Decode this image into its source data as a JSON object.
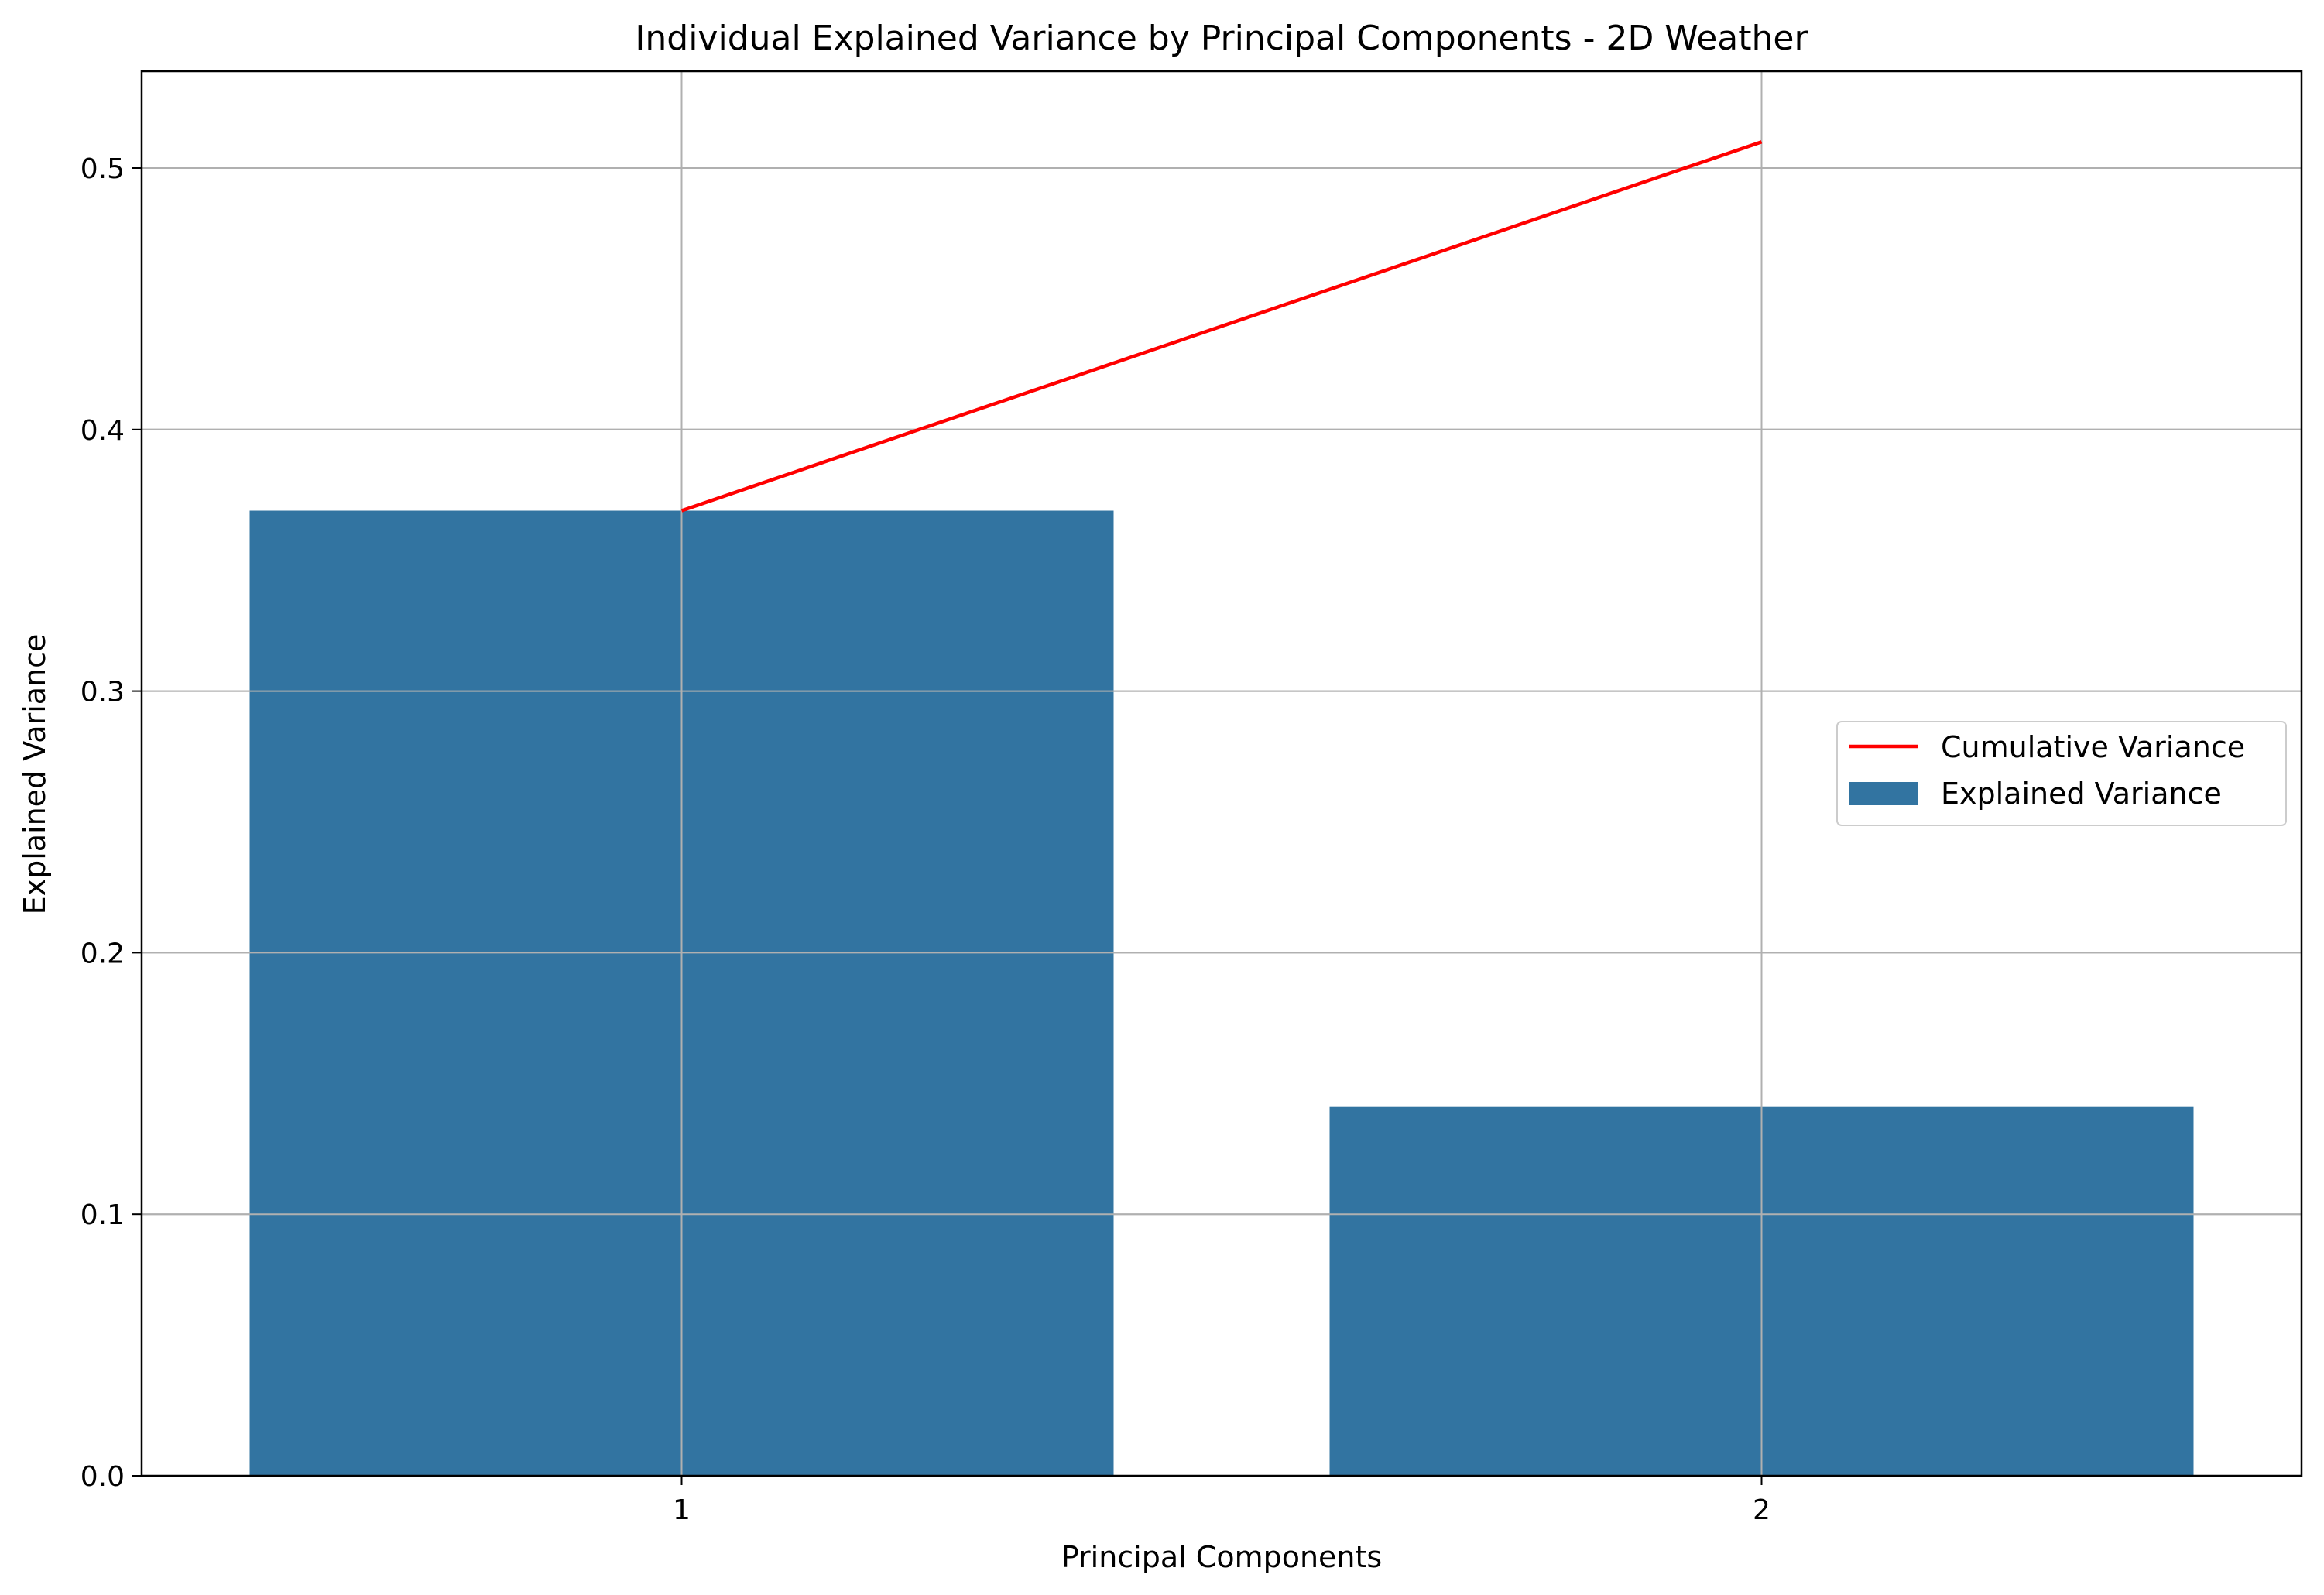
{
  "chart_data": {
    "type": "bar",
    "title": "Individual Explained Variance by Principal Components - 2D Weather",
    "xlabel": "Principal Components",
    "ylabel": "Explained Variance",
    "categories": [
      "1",
      "2"
    ],
    "series": [
      {
        "name": "Explained Variance",
        "type": "bar",
        "color": "#3274a1",
        "values": [
          0.369,
          0.141
        ]
      },
      {
        "name": "Cumulative Variance",
        "type": "line",
        "color": "#ff0000",
        "values": [
          0.369,
          0.51
        ]
      }
    ],
    "ylim": [
      0,
      0.537
    ],
    "yticks": [
      "0.0",
      "0.1",
      "0.2",
      "0.3",
      "0.4",
      "0.5"
    ],
    "ytick_values": [
      0,
      0.1,
      0.2,
      0.3,
      0.4,
      0.5
    ],
    "grid": true,
    "legend_position": "center-right"
  }
}
